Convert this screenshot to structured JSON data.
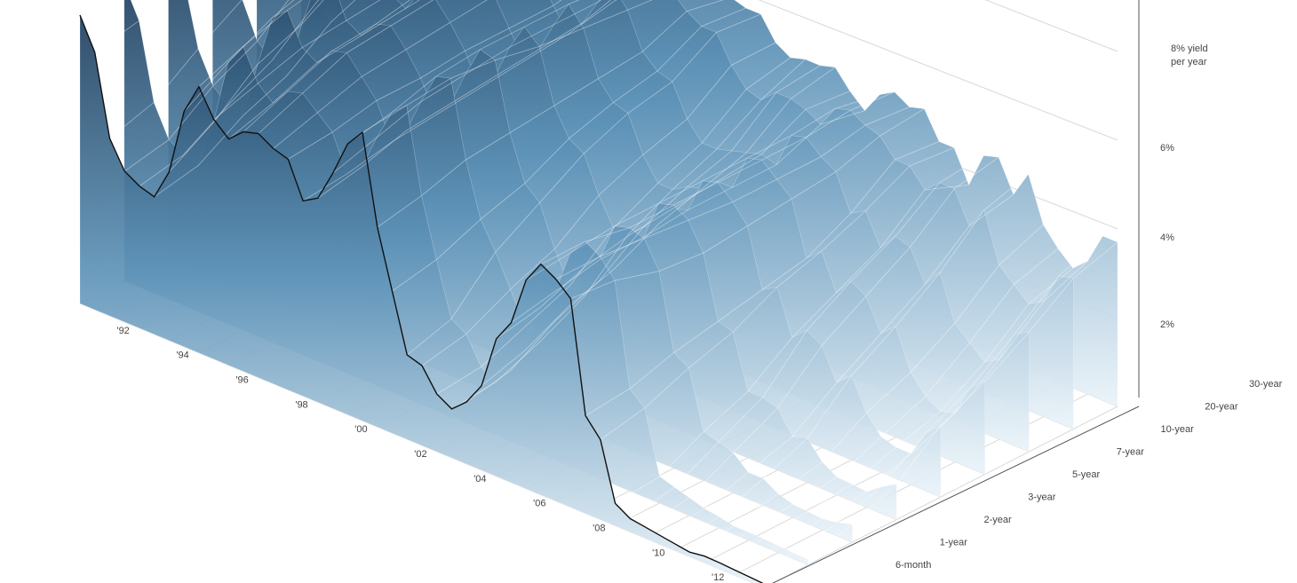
{
  "chart_data": {
    "type": "area",
    "title": "",
    "xlabel": "",
    "ylabel": "",
    "z_axis": {
      "tick_labels": [
        "2%",
        "4%",
        "6%",
        "8% yield",
        "per year"
      ],
      "values": [
        2,
        4,
        6,
        8
      ],
      "range": [
        0,
        9.5
      ]
    },
    "x_axis": {
      "tick_labels": [
        "'92",
        "'94",
        "'96",
        "'98",
        "'00",
        "'02",
        "'04",
        "'06",
        "'08",
        "'10",
        "'12"
      ],
      "years": [
        1992,
        1994,
        1996,
        1998,
        2000,
        2002,
        2004,
        2006,
        2008,
        2010,
        2012
      ],
      "range": [
        1991,
        2014
      ]
    },
    "maturity_axis": {
      "tick_labels": [
        "6-month",
        "1-year",
        "2-year",
        "3-year",
        "5-year",
        "7-year",
        "10-year",
        "20-year",
        "30-year"
      ]
    },
    "series": [
      {
        "name": "",
        "x": [
          1991.0,
          1991.5,
          1992.0,
          1992.5,
          1993.0,
          1993.5,
          1994.0,
          1994.5,
          1995.0,
          1995.5,
          1996.0,
          1996.5,
          1997.0,
          1997.5,
          1998.0,
          1998.5,
          1999.0,
          1999.5,
          2000.0,
          2000.5,
          2001.0,
          2001.5,
          2002.0,
          2002.5,
          2003.0,
          2003.5,
          2004.0,
          2004.5,
          2005.0,
          2005.5,
          2006.0,
          2006.5,
          2007.0,
          2007.5,
          2008.0,
          2008.5,
          2009.0,
          2009.5,
          2010.0,
          2010.5,
          2011.0,
          2011.5,
          2012.0,
          2012.5,
          2013.0,
          2013.5,
          2014.0
        ],
        "values": [
          [
            6.5,
            5.8,
            4.0,
            3.4,
            3.2,
            3.1,
            3.8,
            5.3,
            6.0,
            5.4,
            5.1,
            5.4,
            5.5,
            5.3,
            5.2,
            4.4,
            4.6,
            5.3,
            6.1,
            6.5,
            4.5,
            3.2,
            1.9,
            1.8,
            1.3,
            1.1,
            1.4,
            1.9,
            3.1,
            3.6,
            4.7,
            5.2,
            5.0,
            4.7,
            2.2,
            1.8,
            0.5,
            0.3,
            0.25,
            0.2,
            0.15,
            0.1,
            0.15,
            0.14,
            0.12,
            0.1,
            0.08
          ],
          [
            6.7,
            6.0,
            4.3,
            3.6,
            3.4,
            3.3,
            4.4,
            5.9,
            6.4,
            5.7,
            5.4,
            5.8,
            5.9,
            5.6,
            5.3,
            4.5,
            4.8,
            5.6,
            6.3,
            6.6,
            4.7,
            3.4,
            2.2,
            2.0,
            1.4,
            1.2,
            1.6,
            2.2,
            3.3,
            3.8,
            4.8,
            5.2,
            5.0,
            4.6,
            2.3,
            2.0,
            0.6,
            0.5,
            0.4,
            0.3,
            0.25,
            0.18,
            0.18,
            0.17,
            0.15,
            0.13,
            0.12
          ],
          [
            7.0,
            6.5,
            5.0,
            4.3,
            4.0,
            3.9,
            5.2,
            6.4,
            6.7,
            6.0,
            5.8,
            6.2,
            6.3,
            5.9,
            5.5,
            4.7,
            5.1,
            5.9,
            6.6,
            6.7,
            5.0,
            3.8,
            3.2,
            2.5,
            1.8,
            1.6,
            2.2,
            2.7,
            3.7,
            4.0,
            4.9,
            5.0,
            4.9,
            4.3,
            2.6,
            2.4,
            1.1,
            1.0,
            0.9,
            0.6,
            0.6,
            0.4,
            0.3,
            0.27,
            0.25,
            0.3,
            0.4
          ],
          [
            7.3,
            6.9,
            5.6,
            4.8,
            4.5,
            4.3,
            5.6,
            6.7,
            6.9,
            6.1,
            5.9,
            6.3,
            6.4,
            6.0,
            5.5,
            4.8,
            5.2,
            6.0,
            6.7,
            6.6,
            5.1,
            4.1,
            3.8,
            2.9,
            2.2,
            2.1,
            2.6,
            3.0,
            3.9,
            4.0,
            4.9,
            5.0,
            4.8,
            4.2,
            2.8,
            2.7,
            1.5,
            1.5,
            1.4,
            0.9,
            1.0,
            0.6,
            0.4,
            0.38,
            0.35,
            0.6,
            0.8
          ],
          [
            7.6,
            7.4,
            6.4,
            5.6,
            5.3,
            5.0,
            6.2,
            7.0,
            7.1,
            6.2,
            6.0,
            6.5,
            6.5,
            6.1,
            5.6,
            4.9,
            5.3,
            6.1,
            6.7,
            6.4,
            5.2,
            4.6,
            4.4,
            3.6,
            3.0,
            3.0,
            3.3,
            3.5,
            4.0,
            4.1,
            4.9,
            5.0,
            4.7,
            4.3,
            3.0,
            3.2,
            2.2,
            2.5,
            2.3,
            1.6,
            1.9,
            1.2,
            0.8,
            0.7,
            0.7,
            1.3,
            1.6
          ],
          [
            7.8,
            7.7,
            6.8,
            6.0,
            5.8,
            5.4,
            6.5,
            7.2,
            7.2,
            6.3,
            6.1,
            6.6,
            6.6,
            6.2,
            5.6,
            5.0,
            5.4,
            6.1,
            6.7,
            6.3,
            5.3,
            4.9,
            4.8,
            4.0,
            3.5,
            3.5,
            3.7,
            3.8,
            4.1,
            4.1,
            4.9,
            5.0,
            4.7,
            4.4,
            3.2,
            3.5,
            2.7,
            3.1,
            2.9,
            2.2,
            2.5,
            1.6,
            1.2,
            1.0,
            1.1,
            1.8,
            2.1
          ],
          [
            7.9,
            7.9,
            7.1,
            6.3,
            6.1,
            5.7,
            6.6,
            7.3,
            7.3,
            6.4,
            6.2,
            6.7,
            6.7,
            6.2,
            5.6,
            5.1,
            5.5,
            6.1,
            6.6,
            6.2,
            5.4,
            5.1,
            5.0,
            4.3,
            3.9,
            3.9,
            4.0,
            4.1,
            4.2,
            4.1,
            4.9,
            5.0,
            4.7,
            4.5,
            3.7,
            3.9,
            3.2,
            3.6,
            3.5,
            2.8,
            3.2,
            2.2,
            1.9,
            1.6,
            1.8,
            2.5,
            2.7
          ],
          [
            8.2,
            8.1,
            7.4,
            6.7,
            6.6,
            6.1,
            6.9,
            7.5,
            7.6,
            6.7,
            6.4,
            6.9,
            6.9,
            6.4,
            5.8,
            5.3,
            5.8,
            6.3,
            6.7,
            6.1,
            5.8,
            5.6,
            5.6,
            5.0,
            4.6,
            4.5,
            4.8,
            4.8,
            4.7,
            4.5,
            5.0,
            5.1,
            4.9,
            4.8,
            4.4,
            4.4,
            4.0,
            4.3,
            4.3,
            3.6,
            4.1,
            3.0,
            2.7,
            2.4,
            2.6,
            3.3,
            3.4
          ],
          [
            8.3,
            8.2,
            7.6,
            6.9,
            6.8,
            6.3,
            7.0,
            7.6,
            7.7,
            6.8,
            6.5,
            7.0,
            7.0,
            6.5,
            5.9,
            5.4,
            5.9,
            6.3,
            6.6,
            6.0,
            5.6,
            5.5,
            5.5,
            5.0,
            4.8,
            4.9,
            4.9,
            5.0,
            4.6,
            4.3,
            4.8,
            5.0,
            4.8,
            4.9,
            4.3,
            4.3,
            3.6,
            4.4,
            4.5,
            3.8,
            4.4,
            3.4,
            3.0,
            2.7,
            3.0,
            3.7,
            3.7
          ]
        ]
      }
    ],
    "highlighted_series": "6-month",
    "grid": true,
    "colors": {
      "surface_top": "#1f3f5e",
      "surface_mid": "#6aa0c4",
      "surface_low": "#e6f1f8",
      "front_line": "#111111",
      "grid": "#d9d9d9",
      "axis": "#555555",
      "text": "#444444"
    }
  }
}
